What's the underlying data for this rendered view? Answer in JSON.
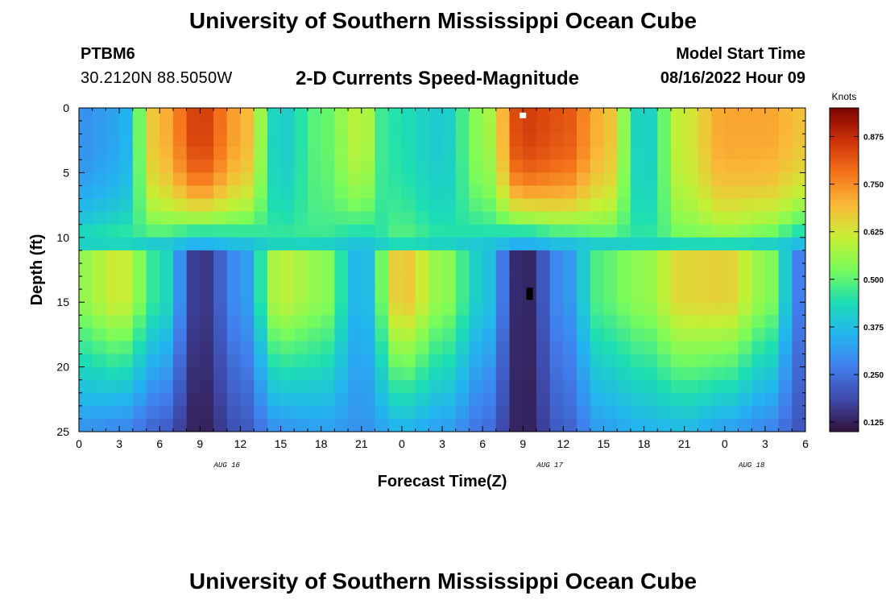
{
  "header": {
    "title": "University of Southern Mississippi Ocean Cube",
    "station_id": "PTBM6",
    "station_coords": "30.2120N  88.5050W",
    "model_start_label": "Model Start Time",
    "model_start_value": "08/16/2022 Hour 09"
  },
  "footer": {
    "title": "University of Southern Mississippi Ocean Cube"
  },
  "chart_data": {
    "type": "heatmap",
    "title": "2-D Currents Speed-Magnitude",
    "xlabel": "Forecast Time(Z)",
    "ylabel": "Depth (ft)",
    "x_tick_labels": [
      "0",
      "3",
      "6",
      "9",
      "12",
      "15",
      "18",
      "21",
      "0",
      "3",
      "6",
      "9",
      "12",
      "15",
      "18",
      "21",
      "0",
      "3",
      "6"
    ],
    "x_range_hours": [
      0,
      54
    ],
    "date_labels": [
      {
        "label": "AUG 16",
        "hour": 11
      },
      {
        "label": "AUG 17",
        "hour": 35
      },
      {
        "label": "AUG 18",
        "hour": 50
      }
    ],
    "y_ticks": [
      0,
      5,
      10,
      15,
      20,
      25
    ],
    "ylim": [
      0,
      25
    ],
    "y_inverted": true,
    "colorbar": {
      "label": "Knots",
      "ticks": [
        "0.125",
        "0.250",
        "0.375",
        "0.500",
        "0.625",
        "0.750",
        "0.875"
      ],
      "range": [
        0.1,
        0.95
      ]
    },
    "grid_rows": 25,
    "grid_cols": 54,
    "surface_speed_profile": [
      {
        "hour": 0,
        "knots": 0.3
      },
      {
        "hour": 3,
        "knots": 0.33
      },
      {
        "hour": 6,
        "knots": 0.7
      },
      {
        "hour": 9,
        "knots": 0.85
      },
      {
        "hour": 12,
        "knots": 0.72
      },
      {
        "hour": 15,
        "knots": 0.4
      },
      {
        "hour": 18,
        "knots": 0.5
      },
      {
        "hour": 21,
        "knots": 0.6
      },
      {
        "hour": 23,
        "knots": 0.45
      },
      {
        "hour": 27,
        "knots": 0.4
      },
      {
        "hour": 30,
        "knots": 0.55
      },
      {
        "hour": 33,
        "knots": 0.85
      },
      {
        "hour": 36,
        "knots": 0.82
      },
      {
        "hour": 39,
        "knots": 0.7
      },
      {
        "hour": 42,
        "knots": 0.4
      },
      {
        "hour": 45,
        "knots": 0.62
      },
      {
        "hour": 48,
        "knots": 0.72
      },
      {
        "hour": 51,
        "knots": 0.72
      },
      {
        "hour": 54,
        "knots": 0.68
      }
    ],
    "mid_speed_profile": [
      {
        "hour": 0,
        "knots": 0.55
      },
      {
        "hour": 3,
        "knots": 0.62
      },
      {
        "hour": 6,
        "knots": 0.45
      },
      {
        "hour": 9,
        "knots": 0.15
      },
      {
        "hour": 12,
        "knots": 0.3
      },
      {
        "hour": 15,
        "knots": 0.6
      },
      {
        "hour": 18,
        "knots": 0.55
      },
      {
        "hour": 21,
        "knots": 0.35
      },
      {
        "hour": 24,
        "knots": 0.68
      },
      {
        "hour": 27,
        "knots": 0.55
      },
      {
        "hour": 30,
        "knots": 0.4
      },
      {
        "hour": 33,
        "knots": 0.12
      },
      {
        "hour": 36,
        "knots": 0.3
      },
      {
        "hour": 39,
        "knots": 0.5
      },
      {
        "hour": 42,
        "knots": 0.55
      },
      {
        "hour": 45,
        "knots": 0.65
      },
      {
        "hour": 48,
        "knots": 0.66
      },
      {
        "hour": 51,
        "knots": 0.55
      },
      {
        "hour": 54,
        "knots": 0.25
      }
    ],
    "bottom_speed_profile": [
      {
        "hour": 0,
        "knots": 0.3
      },
      {
        "hour": 3,
        "knots": 0.28
      },
      {
        "hour": 6,
        "knots": 0.22
      },
      {
        "hour": 9,
        "knots": 0.12
      },
      {
        "hour": 12,
        "knots": 0.2
      },
      {
        "hour": 15,
        "knots": 0.3
      },
      {
        "hour": 18,
        "knots": 0.32
      },
      {
        "hour": 21,
        "knots": 0.3
      },
      {
        "hour": 24,
        "knots": 0.35
      },
      {
        "hour": 27,
        "knots": 0.32
      },
      {
        "hour": 30,
        "knots": 0.25
      },
      {
        "hour": 33,
        "knots": 0.12
      },
      {
        "hour": 36,
        "knots": 0.22
      },
      {
        "hour": 39,
        "knots": 0.32
      },
      {
        "hour": 42,
        "knots": 0.35
      },
      {
        "hour": 45,
        "knots": 0.36
      },
      {
        "hour": 48,
        "knots": 0.32
      },
      {
        "hour": 51,
        "knots": 0.28
      },
      {
        "hour": 54,
        "knots": 0.2
      }
    ],
    "markers": [
      {
        "type": "white-square",
        "hour": 33,
        "depth_ft": 0.3
      },
      {
        "type": "black-rect",
        "hour": 33.5,
        "depth_ft": 14.2
      }
    ]
  }
}
